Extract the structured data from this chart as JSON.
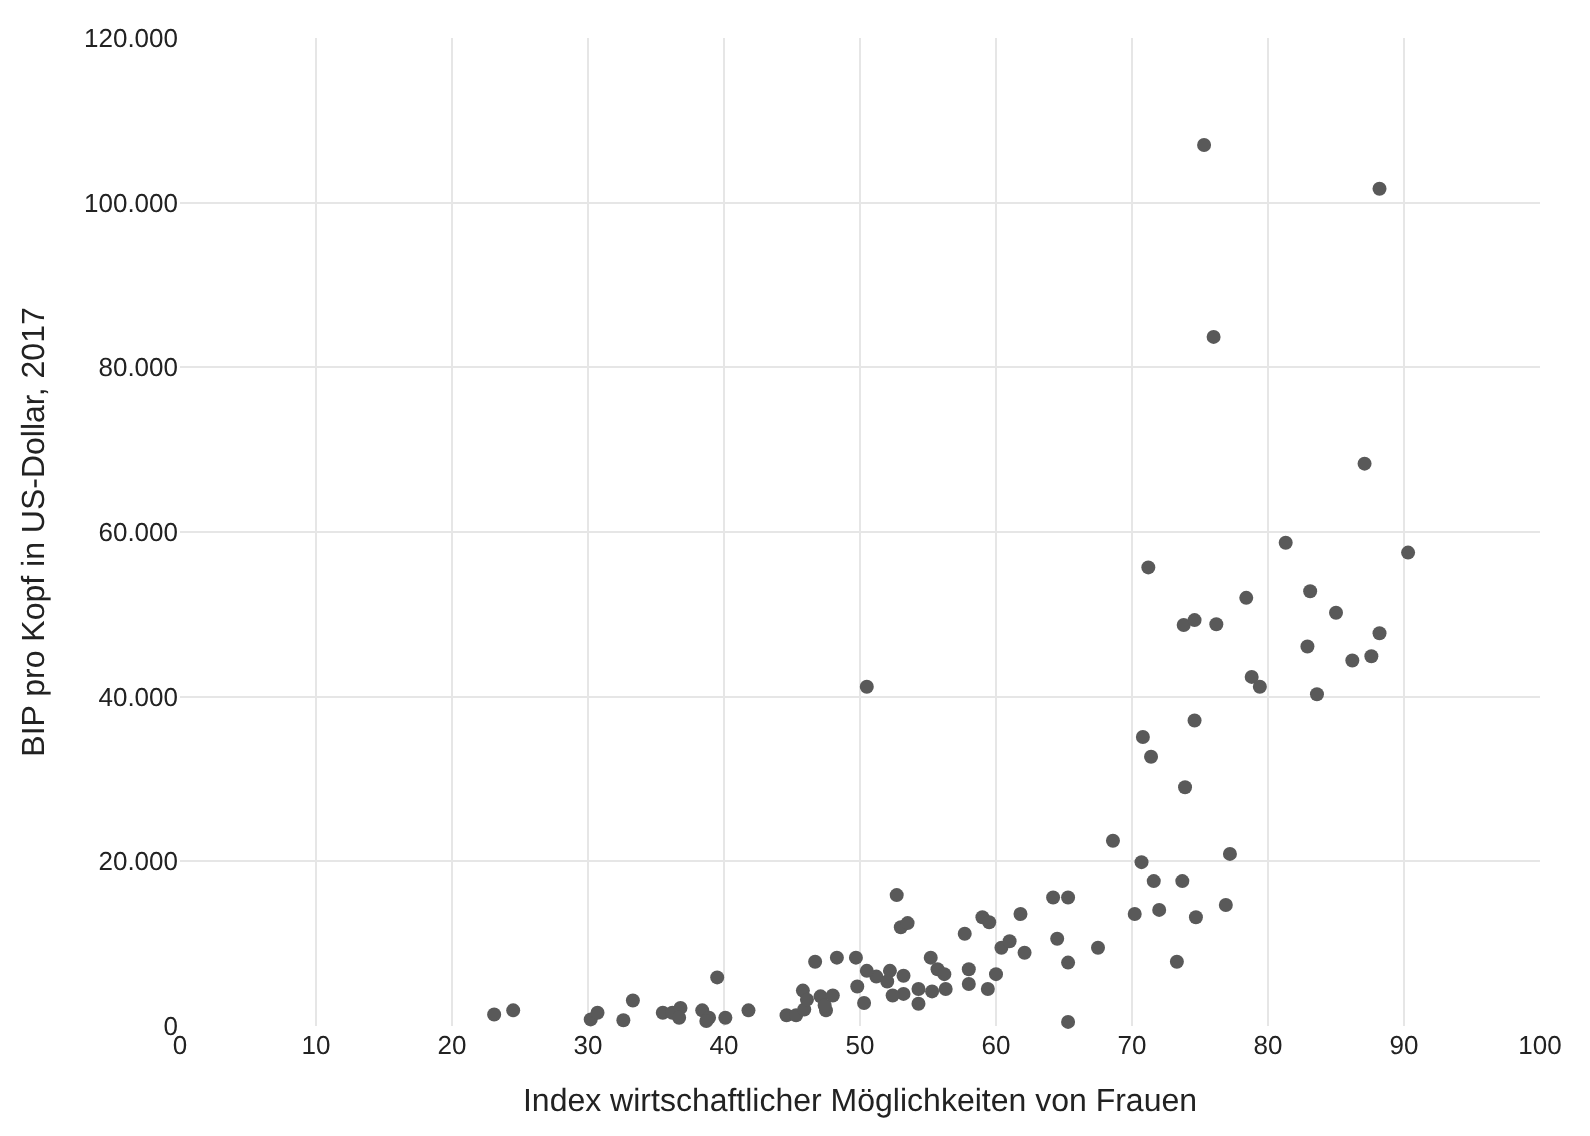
{
  "chart_data": {
    "type": "scatter",
    "xlabel": "Index wirtschaftlicher Möglichkeiten von Frauen",
    "ylabel": "BIP pro Kopf in US-Dollar, 2017",
    "xlim": [
      0,
      100
    ],
    "xticks": [
      0,
      10,
      20,
      30,
      40,
      50,
      60,
      70,
      80,
      90,
      100
    ],
    "ylim": [
      0,
      120000
    ],
    "yticks": [
      {
        "value": 0,
        "label": "0"
      },
      {
        "value": 20000,
        "label": "20.000"
      },
      {
        "value": 40000,
        "label": "40.000"
      },
      {
        "value": 60000,
        "label": "60.000"
      },
      {
        "value": 80000,
        "label": "80.000"
      },
      {
        "value": 100000,
        "label": "100.000"
      },
      {
        "value": 120000,
        "label": "120.000"
      }
    ],
    "grid": true,
    "marker": "circle",
    "series": [
      {
        "color": "#595959",
        "x": [
          75.3,
          88.2,
          76.0,
          87.1,
          71.2,
          81.3,
          90.3,
          78.4,
          83.1,
          85.0,
          73.8,
          74.6,
          76.2,
          88.2,
          82.9,
          86.2,
          87.6,
          78.8,
          79.4,
          83.6,
          74.6,
          70.8,
          71.4,
          73.9,
          68.6,
          77.2,
          70.7,
          52.7,
          64.2,
          65.3,
          71.6,
          73.7,
          61.8,
          70.2,
          72.0,
          74.7,
          76.9,
          53.0,
          53.5,
          59.0,
          59.5,
          57.7,
          60.4,
          61.0,
          62.1,
          64.5,
          67.5,
          65.3,
          73.3,
          65.3,
          55.2,
          55.7,
          56.2,
          58.0,
          60.0,
          58.0,
          59.4,
          56.3,
          55.3,
          54.3,
          54.3,
          53.2,
          52.4,
          53.2,
          52.2,
          51.2,
          52.0,
          23.1,
          24.5,
          30.2,
          30.7,
          32.6,
          33.3,
          35.5,
          36.2,
          36.8,
          36.7,
          38.4,
          38.9,
          39.5,
          40.1,
          38.7,
          41.8,
          44.6,
          45.3,
          45.9,
          45.8,
          46.1,
          46.7,
          47.1,
          47.5,
          47.4,
          48.0,
          48.3,
          49.7,
          49.8,
          50.3,
          50.5,
          50.5
        ],
        "values": [
          107000,
          101700,
          83700,
          68300,
          55700,
          58700,
          57500,
          52000,
          52800,
          50200,
          48700,
          49300,
          48800,
          47700,
          46100,
          44400,
          44900,
          42400,
          41200,
          40300,
          37100,
          35100,
          32700,
          29000,
          22500,
          20900,
          19900,
          15900,
          15600,
          15600,
          17600,
          17600,
          13600,
          13600,
          14100,
          13200,
          14700,
          12000,
          12500,
          13200,
          12600,
          11200,
          9500,
          10300,
          8900,
          10600,
          9500,
          7700,
          7800,
          500,
          8300,
          6900,
          6300,
          6900,
          6300,
          5100,
          4500,
          4500,
          4200,
          4500,
          2700,
          3900,
          3700,
          6100,
          6700,
          6000,
          5400,
          1400,
          1900,
          800,
          1600,
          700,
          3100,
          1600,
          1600,
          2200,
          1000,
          1900,
          1000,
          5900,
          1000,
          600,
          1900,
          1300,
          1300,
          2000,
          4300,
          3200,
          7800,
          3600,
          1900,
          2500,
          3700,
          8300,
          8300,
          4800,
          2800,
          6700,
          41200
        ]
      }
    ]
  }
}
